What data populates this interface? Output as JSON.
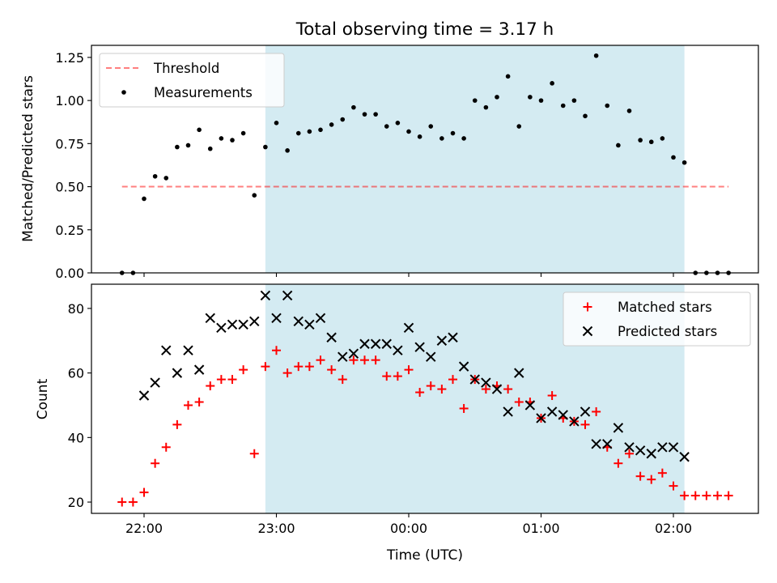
{
  "colors": {
    "observing_band": "#add8e6",
    "threshold": "#ff0000",
    "measurements": "#000000",
    "matched": "#ff0000",
    "predicted": "#000000"
  },
  "chart_data": [
    {
      "type": "scatter",
      "title": "Total observing time = 3.17 h",
      "xlabel": "",
      "ylabel": "Matched/Predicted stars",
      "ylim": [
        0,
        1.32
      ],
      "yticks": [
        "0.00",
        "0.25",
        "0.50",
        "0.75",
        "1.00",
        "1.25"
      ],
      "grid": false,
      "legend": "top-left",
      "observing_band": {
        "start": "22:55",
        "end": "02:05"
      },
      "threshold": {
        "name": "Threshold",
        "value": 0.5,
        "x_start": "21:50",
        "x_end": "02:25"
      },
      "series": [
        {
          "name": "Measurements",
          "points": [
            [
              "21:50",
              0.0
            ],
            [
              "21:55",
              0.0
            ],
            [
              "22:00",
              0.43
            ],
            [
              "22:05",
              0.56
            ],
            [
              "22:10",
              0.55
            ],
            [
              "22:15",
              0.73
            ],
            [
              "22:20",
              0.74
            ],
            [
              "22:25",
              0.83
            ],
            [
              "22:30",
              0.72
            ],
            [
              "22:35",
              0.78
            ],
            [
              "22:40",
              0.77
            ],
            [
              "22:45",
              0.81
            ],
            [
              "22:50",
              0.45
            ],
            [
              "22:55",
              0.73
            ],
            [
              "23:00",
              0.87
            ],
            [
              "23:05",
              0.71
            ],
            [
              "23:10",
              0.81
            ],
            [
              "23:15",
              0.82
            ],
            [
              "23:20",
              0.83
            ],
            [
              "23:25",
              0.86
            ],
            [
              "23:30",
              0.89
            ],
            [
              "23:35",
              0.96
            ],
            [
              "23:40",
              0.92
            ],
            [
              "23:45",
              0.92
            ],
            [
              "23:50",
              0.85
            ],
            [
              "23:55",
              0.87
            ],
            [
              "00:00",
              0.82
            ],
            [
              "00:05",
              0.79
            ],
            [
              "00:10",
              0.85
            ],
            [
              "00:15",
              0.78
            ],
            [
              "00:20",
              0.81
            ],
            [
              "00:25",
              0.78
            ],
            [
              "00:30",
              1.0
            ],
            [
              "00:35",
              0.96
            ],
            [
              "00:40",
              1.02
            ],
            [
              "00:45",
              1.14
            ],
            [
              "00:50",
              0.85
            ],
            [
              "00:55",
              1.02
            ],
            [
              "01:00",
              1.0
            ],
            [
              "01:05",
              1.1
            ],
            [
              "01:10",
              0.97
            ],
            [
              "01:15",
              1.0
            ],
            [
              "01:20",
              0.91
            ],
            [
              "01:25",
              1.26
            ],
            [
              "01:30",
              0.97
            ],
            [
              "01:35",
              0.74
            ],
            [
              "01:40",
              0.94
            ],
            [
              "01:45",
              0.77
            ],
            [
              "01:50",
              0.76
            ],
            [
              "01:55",
              0.78
            ],
            [
              "02:00",
              0.67
            ],
            [
              "02:05",
              0.64
            ],
            [
              "02:10",
              0.0
            ],
            [
              "02:15",
              0.0
            ],
            [
              "02:20",
              0.0
            ],
            [
              "02:25",
              0.0
            ]
          ]
        }
      ]
    },
    {
      "type": "scatter",
      "title": "",
      "xlabel": "Time (UTC)",
      "ylabel": "Count",
      "ylim": [
        16.5,
        87.5
      ],
      "yticks": [
        "20",
        "40",
        "60",
        "80"
      ],
      "xticks": [
        "22:00",
        "23:00",
        "00:00",
        "01:00",
        "02:00"
      ],
      "grid": false,
      "legend": "top-right",
      "observing_band": {
        "start": "22:55",
        "end": "02:05"
      },
      "series": [
        {
          "name": "Matched stars",
          "marker": "plus",
          "points": [
            [
              "21:50",
              20
            ],
            [
              "21:55",
              20
            ],
            [
              "22:00",
              23
            ],
            [
              "22:05",
              32
            ],
            [
              "22:10",
              37
            ],
            [
              "22:15",
              44
            ],
            [
              "22:20",
              50
            ],
            [
              "22:25",
              51
            ],
            [
              "22:30",
              56
            ],
            [
              "22:35",
              58
            ],
            [
              "22:40",
              58
            ],
            [
              "22:45",
              61
            ],
            [
              "22:50",
              35
            ],
            [
              "22:55",
              62
            ],
            [
              "23:00",
              67
            ],
            [
              "23:05",
              60
            ],
            [
              "23:10",
              62
            ],
            [
              "23:15",
              62
            ],
            [
              "23:20",
              64
            ],
            [
              "23:25",
              61
            ],
            [
              "23:30",
              58
            ],
            [
              "23:35",
              64
            ],
            [
              "23:40",
              64
            ],
            [
              "23:45",
              64
            ],
            [
              "23:50",
              59
            ],
            [
              "23:55",
              59
            ],
            [
              "00:00",
              61
            ],
            [
              "00:05",
              54
            ],
            [
              "00:10",
              56
            ],
            [
              "00:15",
              55
            ],
            [
              "00:20",
              58
            ],
            [
              "00:25",
              49
            ],
            [
              "00:30",
              58
            ],
            [
              "00:35",
              55
            ],
            [
              "00:40",
              56
            ],
            [
              "00:45",
              55
            ],
            [
              "00:50",
              51
            ],
            [
              "00:55",
              51
            ],
            [
              "01:00",
              46
            ],
            [
              "01:05",
              53
            ],
            [
              "01:10",
              46
            ],
            [
              "01:15",
              45
            ],
            [
              "01:20",
              44
            ],
            [
              "01:25",
              48
            ],
            [
              "01:30",
              37
            ],
            [
              "01:35",
              32
            ],
            [
              "01:40",
              35
            ],
            [
              "01:45",
              28
            ],
            [
              "01:50",
              27
            ],
            [
              "01:55",
              29
            ],
            [
              "02:00",
              25
            ],
            [
              "02:05",
              22
            ],
            [
              "02:10",
              22
            ],
            [
              "02:15",
              22
            ],
            [
              "02:20",
              22
            ],
            [
              "02:25",
              22
            ]
          ]
        },
        {
          "name": "Predicted stars",
          "marker": "x",
          "points": [
            [
              "22:00",
              53
            ],
            [
              "22:05",
              57
            ],
            [
              "22:10",
              67
            ],
            [
              "22:15",
              60
            ],
            [
              "22:20",
              67
            ],
            [
              "22:25",
              61
            ],
            [
              "22:30",
              77
            ],
            [
              "22:35",
              74
            ],
            [
              "22:40",
              75
            ],
            [
              "22:45",
              75
            ],
            [
              "22:50",
              76
            ],
            [
              "22:55",
              84
            ],
            [
              "23:00",
              77
            ],
            [
              "23:05",
              84
            ],
            [
              "23:10",
              76
            ],
            [
              "23:15",
              75
            ],
            [
              "23:20",
              77
            ],
            [
              "23:25",
              71
            ],
            [
              "23:30",
              65
            ],
            [
              "23:35",
              66
            ],
            [
              "23:40",
              69
            ],
            [
              "23:45",
              69
            ],
            [
              "23:50",
              69
            ],
            [
              "23:55",
              67
            ],
            [
              "00:00",
              74
            ],
            [
              "00:05",
              68
            ],
            [
              "00:10",
              65
            ],
            [
              "00:15",
              70
            ],
            [
              "00:20",
              71
            ],
            [
              "00:25",
              62
            ],
            [
              "00:30",
              58
            ],
            [
              "00:35",
              57
            ],
            [
              "00:40",
              55
            ],
            [
              "00:45",
              48
            ],
            [
              "00:50",
              60
            ],
            [
              "00:55",
              50
            ],
            [
              "01:00",
              46
            ],
            [
              "01:05",
              48
            ],
            [
              "01:10",
              47
            ],
            [
              "01:15",
              45
            ],
            [
              "01:20",
              48
            ],
            [
              "01:25",
              38
            ],
            [
              "01:30",
              38
            ],
            [
              "01:35",
              43
            ],
            [
              "01:40",
              37
            ],
            [
              "01:45",
              36
            ],
            [
              "01:50",
              35
            ],
            [
              "01:55",
              37
            ],
            [
              "02:00",
              37
            ],
            [
              "02:05",
              34
            ]
          ]
        }
      ]
    }
  ]
}
